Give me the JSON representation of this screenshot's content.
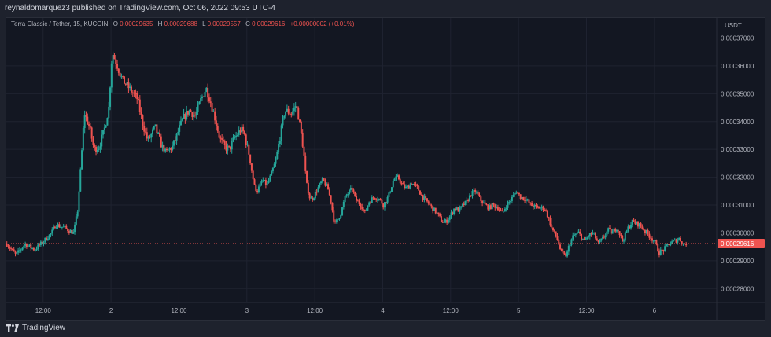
{
  "header": {
    "publisher": "reynaldomarquez3 published on TradingView.com, Oct 06, 2022 09:53 UTC-4"
  },
  "legend": {
    "symbol": "Terra Classic / Tether, 15, KUCOIN",
    "o_label": "O",
    "o_value": "0.00029635",
    "h_label": "H",
    "h_value": "0.00029688",
    "l_label": "L",
    "l_value": "0.00029557",
    "c_label": "C",
    "c_value": "0.00029616",
    "change": "+0.00000002 (+0.01%)"
  },
  "footer": {
    "brand": "TradingView",
    "logo_icon": "tradingview-logo-icon"
  },
  "colors": {
    "up": "#26a69a",
    "down": "#ef5350",
    "background": "#131722",
    "grid": "#1f2330",
    "text": "#b2b5be"
  },
  "chart_data": {
    "type": "candlestick",
    "currency_label": "USDT",
    "current_price_label": "0.00029616",
    "current_price": 0.00029616,
    "ylim": [
      0.000275,
      0.0003772
    ],
    "y_ticks": [
      {
        "value": 0.00037,
        "label": "0.00037000"
      },
      {
        "value": 0.00036,
        "label": "0.00036000"
      },
      {
        "value": 0.00035,
        "label": "0.00035000"
      },
      {
        "value": 0.00034,
        "label": "0.00034000"
      },
      {
        "value": 0.00033,
        "label": "0.00033000"
      },
      {
        "value": 0.00032,
        "label": "0.00032000"
      },
      {
        "value": 0.00031,
        "label": "0.00031000"
      },
      {
        "value": 0.0003,
        "label": "0.00030000"
      },
      {
        "value": 0.00029,
        "label": "0.00029000"
      },
      {
        "value": 0.00028,
        "label": "0.00028000"
      }
    ],
    "x_ticks": [
      {
        "t": 12,
        "label": "12:00"
      },
      {
        "t": 24,
        "label": "2"
      },
      {
        "t": 36,
        "label": "12:00"
      },
      {
        "t": 48,
        "label": "3"
      },
      {
        "t": 60,
        "label": "12:00"
      },
      {
        "t": 72,
        "label": "4"
      },
      {
        "t": 84,
        "label": "12:00"
      },
      {
        "t": 96,
        "label": "5"
      },
      {
        "t": 108,
        "label": "12:00"
      },
      {
        "t": 120,
        "label": "6"
      }
    ],
    "xlim": [
      5.5,
      131
    ],
    "series_close_path": [
      [
        5.6,
        0.000296
      ],
      [
        7.2,
        0.000292
      ],
      [
        8.8,
        0.000296
      ],
      [
        10.5,
        0.000294
      ],
      [
        12.1,
        0.000297
      ],
      [
        13.5,
        0.0003
      ],
      [
        14.2,
        0.000303
      ],
      [
        15.6,
        0.000302
      ],
      [
        17.4,
        0.0003
      ],
      [
        18.1,
        0.000308
      ],
      [
        18.7,
        0.000325
      ],
      [
        19.3,
        0.000343
      ],
      [
        20.2,
        0.000338
      ],
      [
        21.0,
        0.00033
      ],
      [
        21.9,
        0.000331
      ],
      [
        22.8,
        0.000337
      ],
      [
        23.6,
        0.000345
      ],
      [
        24.2,
        0.000365
      ],
      [
        25.1,
        0.00036
      ],
      [
        26.0,
        0.000355
      ],
      [
        27.2,
        0.000352
      ],
      [
        28.7,
        0.000348
      ],
      [
        29.5,
        0.00034
      ],
      [
        30.5,
        0.000333
      ],
      [
        31.8,
        0.000338
      ],
      [
        33.0,
        0.000331
      ],
      [
        33.7,
        0.000329
      ],
      [
        34.9,
        0.000331
      ],
      [
        35.8,
        0.000336
      ],
      [
        36.7,
        0.000341
      ],
      [
        37.8,
        0.000344
      ],
      [
        38.9,
        0.000342
      ],
      [
        39.9,
        0.000348
      ],
      [
        40.8,
        0.000352
      ],
      [
        41.6,
        0.000347
      ],
      [
        42.4,
        0.000341
      ],
      [
        43.2,
        0.000334
      ],
      [
        44.0,
        0.000331
      ],
      [
        44.9,
        0.00033
      ],
      [
        45.8,
        0.000334
      ],
      [
        46.9,
        0.000337
      ],
      [
        47.5,
        0.000336
      ],
      [
        48.4,
        0.000328
      ],
      [
        49.3,
        0.000317
      ],
      [
        49.8,
        0.000315
      ],
      [
        50.8,
        0.000319
      ],
      [
        51.5,
        0.000317
      ],
      [
        52.3,
        0.000321
      ],
      [
        53.1,
        0.000326
      ],
      [
        53.9,
        0.000335
      ],
      [
        54.7,
        0.000344
      ],
      [
        55.9,
        0.000343
      ],
      [
        56.7,
        0.000346
      ],
      [
        57.2,
        0.000341
      ],
      [
        58.0,
        0.00033
      ],
      [
        58.5,
        0.000318
      ],
      [
        59.2,
        0.000312
      ],
      [
        59.8,
        0.000313
      ],
      [
        60.8,
        0.000317
      ],
      [
        61.4,
        0.000319
      ],
      [
        62.3,
        0.000316
      ],
      [
        62.9,
        0.000311
      ],
      [
        63.5,
        0.000303
      ],
      [
        64.1,
        0.000305
      ],
      [
        64.6,
        0.000307
      ],
      [
        65.4,
        0.000313
      ],
      [
        66.6,
        0.000316
      ],
      [
        67.2,
        0.000312
      ],
      [
        68.2,
        0.00031
      ],
      [
        68.9,
        0.000307
      ],
      [
        69.5,
        0.000311
      ],
      [
        70.5,
        0.000313
      ],
      [
        71.5,
        0.000312
      ],
      [
        72.1,
        0.00031
      ],
      [
        73.0,
        0.000313
      ],
      [
        73.9,
        0.000319
      ],
      [
        74.7,
        0.00032
      ],
      [
        75.5,
        0.000317
      ],
      [
        76.2,
        0.000316
      ],
      [
        77.1,
        0.000318
      ],
      [
        78.2,
        0.000316
      ],
      [
        79.0,
        0.000313
      ],
      [
        79.9,
        0.000311
      ],
      [
        80.7,
        0.000309
      ],
      [
        81.6,
        0.000307
      ],
      [
        82.5,
        0.000304
      ],
      [
        83.2,
        0.000304
      ],
      [
        83.9,
        0.000306
      ],
      [
        84.7,
        0.000309
      ],
      [
        85.5,
        0.000308
      ],
      [
        86.2,
        0.00031
      ],
      [
        86.8,
        0.000311
      ],
      [
        87.6,
        0.000314
      ],
      [
        88.4,
        0.000315
      ],
      [
        89.2,
        0.000312
      ],
      [
        90.1,
        0.00031
      ],
      [
        90.8,
        0.000309
      ],
      [
        91.5,
        0.00031
      ],
      [
        92.4,
        0.000309
      ],
      [
        93.1,
        0.000307
      ],
      [
        93.9,
        0.00031
      ],
      [
        94.7,
        0.000312
      ],
      [
        95.6,
        0.000315
      ],
      [
        96.3,
        0.000313
      ],
      [
        97.4,
        0.000312
      ],
      [
        98.2,
        0.00031
      ],
      [
        99.3,
        0.000309
      ],
      [
        100.5,
        0.000309
      ],
      [
        101.0,
        0.000307
      ],
      [
        101.8,
        0.000302
      ],
      [
        102.8,
        0.000298
      ],
      [
        103.7,
        0.000292
      ],
      [
        104.5,
        0.000292
      ],
      [
        105.0,
        0.000296
      ],
      [
        105.7,
        0.000299
      ],
      [
        106.6,
        0.0003
      ],
      [
        107.6,
        0.000297
      ],
      [
        108.4,
        0.000299
      ],
      [
        109.2,
        0.0003
      ],
      [
        110.1,
        0.000296
      ],
      [
        110.9,
        0.000298
      ],
      [
        111.8,
        0.000301
      ],
      [
        112.5,
        0.0003
      ],
      [
        113.4,
        0.000302
      ],
      [
        114.4,
        0.000297
      ],
      [
        115.4,
        0.000302
      ],
      [
        116.1,
        0.000304
      ],
      [
        117.3,
        0.000303
      ],
      [
        118.2,
        0.000301
      ],
      [
        119.1,
        0.000299
      ],
      [
        120.0,
        0.000297
      ],
      [
        120.8,
        0.000293
      ],
      [
        121.7,
        0.000294
      ],
      [
        122.5,
        0.000296
      ],
      [
        123.5,
        0.000297
      ],
      [
        124.4,
        0.000298
      ],
      [
        125.1,
        0.000296
      ],
      [
        125.7,
        0.0002962
      ]
    ]
  }
}
